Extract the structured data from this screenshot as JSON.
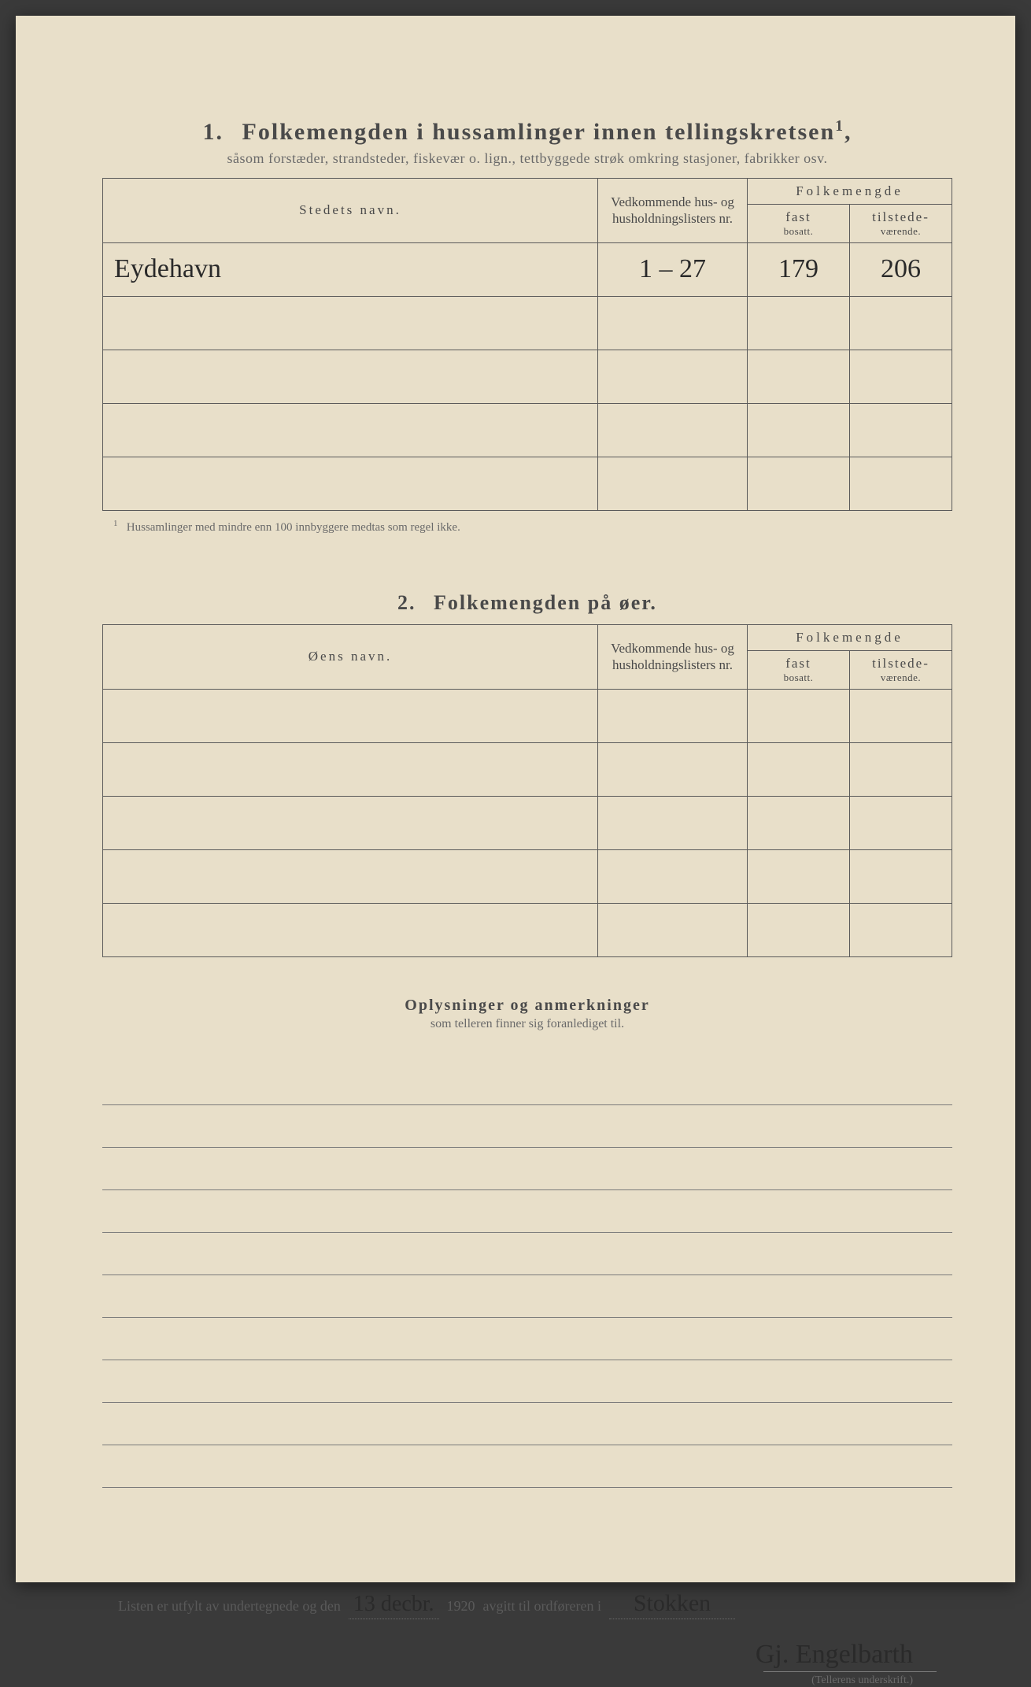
{
  "section1": {
    "number": "1.",
    "title": "Folkemengden i hussamlinger innen tellingskretsen",
    "title_sup": "1",
    "subtitle": "såsom forstæder, strandsteder, fiskevær o. lign., tettbyggede strøk omkring stasjoner, fabrikker osv.",
    "headers": {
      "name": "Stedets navn.",
      "lists": "Vedkommende hus- og husholdningslisters nr.",
      "folkemengde": "Folkemengde",
      "fast_main": "fast",
      "fast_small": "bosatt.",
      "til_main": "tilstede-",
      "til_small": "værende."
    },
    "rows": [
      {
        "name": "Eydehavn",
        "lists": "1 – 27",
        "fast": "179",
        "til": "206"
      },
      {
        "name": "",
        "lists": "",
        "fast": "",
        "til": ""
      },
      {
        "name": "",
        "lists": "",
        "fast": "",
        "til": ""
      },
      {
        "name": "",
        "lists": "",
        "fast": "",
        "til": ""
      },
      {
        "name": "",
        "lists": "",
        "fast": "",
        "til": ""
      }
    ],
    "footnote_sup": "1",
    "footnote": "Hussamlinger med mindre enn 100 innbyggere medtas som regel ikke."
  },
  "section2": {
    "number": "2.",
    "title": "Folkemengden på øer.",
    "headers": {
      "name": "Øens navn.",
      "lists": "Vedkommende hus- og husholdningslisters nr.",
      "folkemengde": "Folkemengde",
      "fast_main": "fast",
      "fast_small": "bosatt.",
      "til_main": "tilstede-",
      "til_small": "værende."
    },
    "rows": [
      {
        "name": "",
        "lists": "",
        "fast": "",
        "til": ""
      },
      {
        "name": "",
        "lists": "",
        "fast": "",
        "til": ""
      },
      {
        "name": "",
        "lists": "",
        "fast": "",
        "til": ""
      },
      {
        "name": "",
        "lists": "",
        "fast": "",
        "til": ""
      },
      {
        "name": "",
        "lists": "",
        "fast": "",
        "til": ""
      }
    ]
  },
  "notes": {
    "title": "Oplysninger og anmerkninger",
    "subtitle": "som telleren finner sig foranlediget til.",
    "line_count": 10
  },
  "signature": {
    "prefix": "Listen er utfylt av undertegnede og den",
    "date_hw": "13 decbr.",
    "year": "1920",
    "mid": "avgitt til ordføreren i",
    "place_hw": "Stokken",
    "signer_hw": "Gj. Engelbarth",
    "label": "(Tellerens underskrift.)"
  },
  "colors": {
    "paper": "#e8dfc9",
    "ink": "#4a4a4a",
    "rule": "#5a5a5a",
    "hand": "#2a2a2a"
  }
}
